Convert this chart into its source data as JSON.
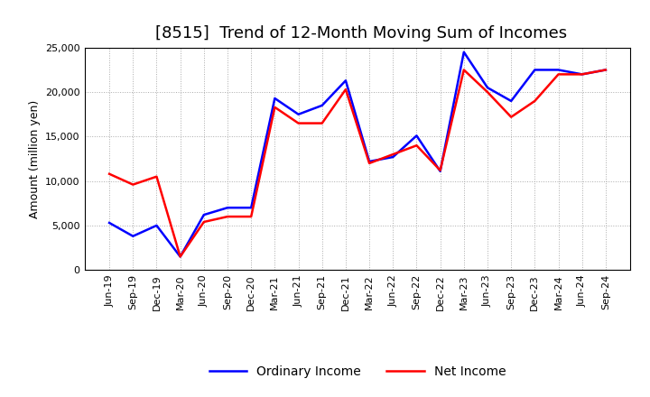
{
  "title": "[8515]  Trend of 12-Month Moving Sum of Incomes",
  "ylabel": "Amount (million yen)",
  "x_labels": [
    "Jun-19",
    "Sep-19",
    "Dec-19",
    "Mar-20",
    "Jun-20",
    "Sep-20",
    "Dec-20",
    "Mar-21",
    "Jun-21",
    "Sep-21",
    "Dec-21",
    "Mar-22",
    "Jun-22",
    "Sep-22",
    "Dec-22",
    "Mar-23",
    "Jun-23",
    "Sep-23",
    "Dec-23",
    "Mar-24",
    "Jun-24",
    "Sep-24"
  ],
  "ordinary_income": [
    5300,
    3800,
    5000,
    1500,
    6200,
    7000,
    7000,
    19300,
    17500,
    18500,
    21300,
    12200,
    12700,
    15100,
    11100,
    24500,
    20500,
    19000,
    22500,
    22500,
    22000,
    22500
  ],
  "net_income": [
    10800,
    9600,
    10500,
    1500,
    5400,
    6000,
    6000,
    18300,
    16500,
    16500,
    20300,
    12000,
    13000,
    14000,
    11200,
    22500,
    20000,
    17200,
    19000,
    22000,
    22000,
    22500
  ],
  "ordinary_income_color": "#0000FF",
  "net_income_color": "#FF0000",
  "ylim": [
    0,
    25000
  ],
  "yticks": [
    0,
    5000,
    10000,
    15000,
    20000,
    25000
  ],
  "background_color": "#ffffff",
  "grid_color": "#aaaaaa",
  "title_fontsize": 13,
  "axis_fontsize": 9,
  "tick_fontsize": 8,
  "legend_labels": [
    "Ordinary Income",
    "Net Income"
  ],
  "linewidth": 1.8
}
